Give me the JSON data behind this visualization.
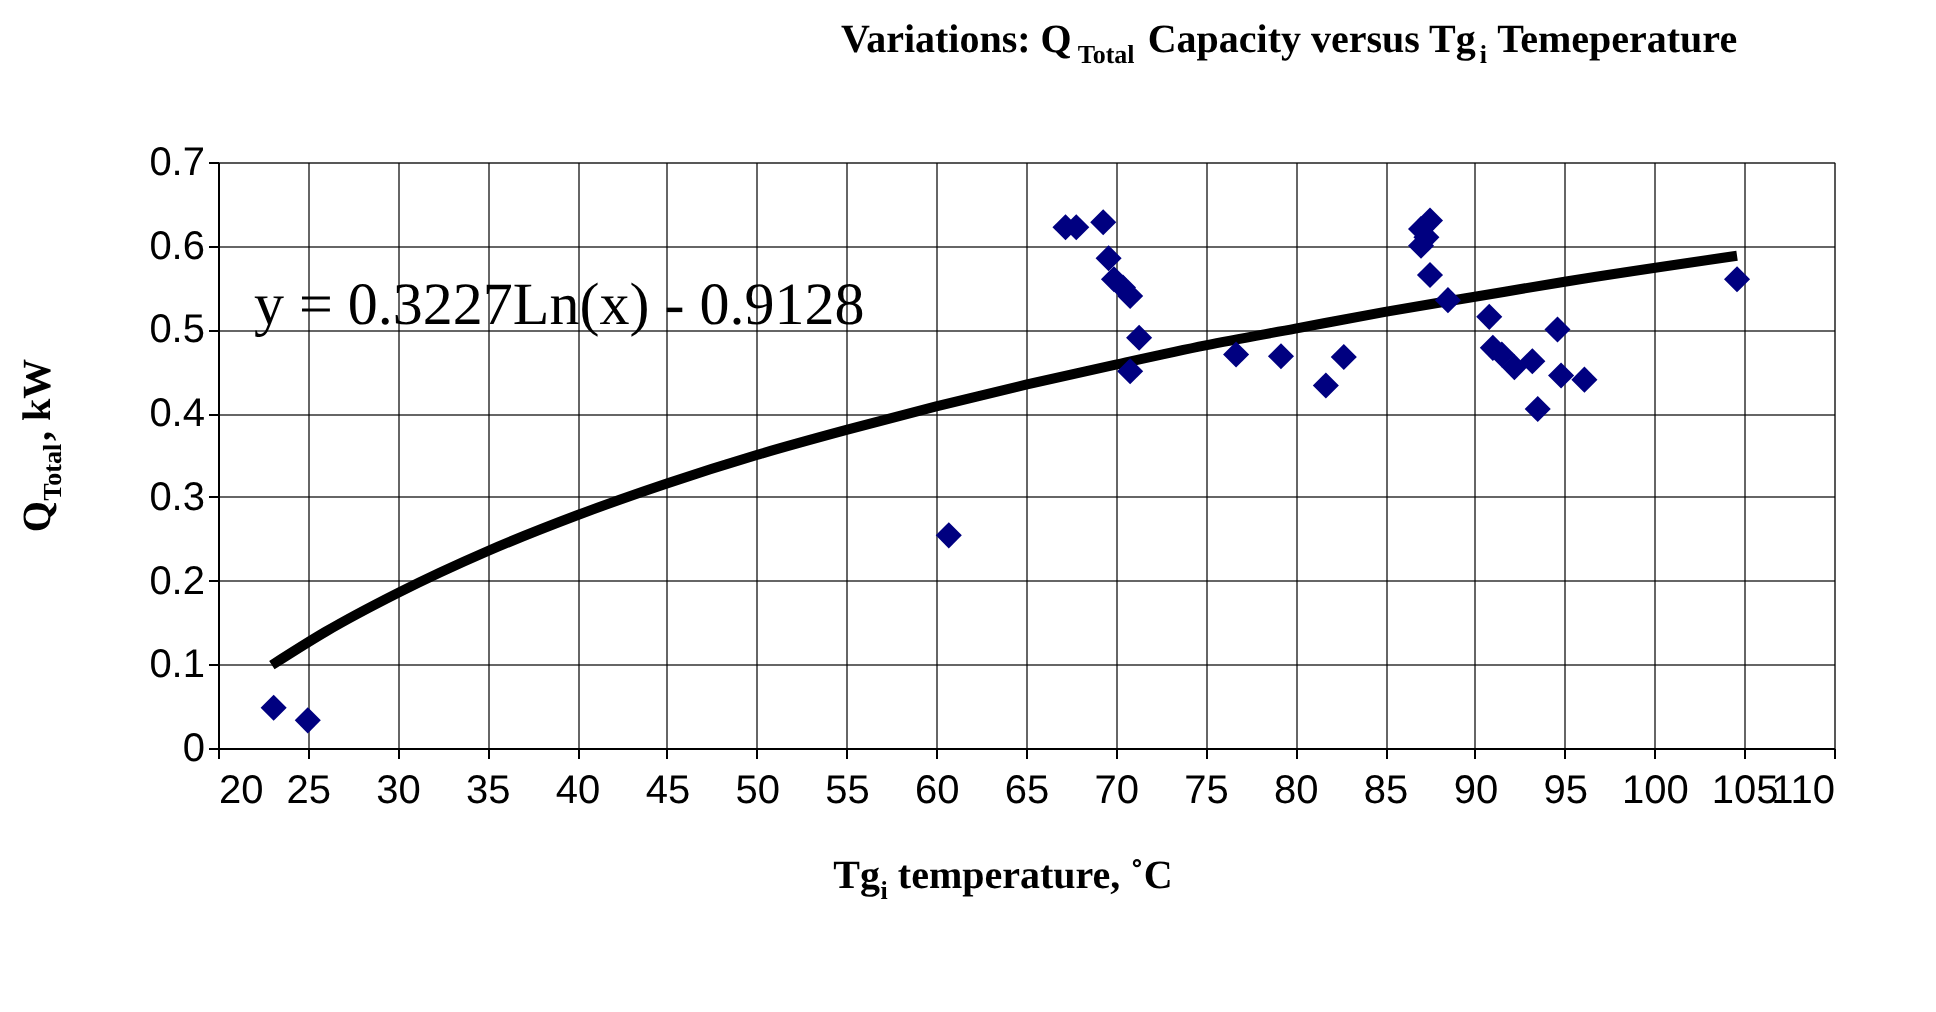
{
  "chart_data": {
    "type": "scatter",
    "title": "Variations: Q$_{Total}$ Capacity versus Tg$_{i}$ Temeperature",
    "xlabel": "Tg$_{i}$ temperature, ˚C",
    "ylabel": "Q$_{Total}$, kW",
    "annotations": [
      "y = 0.3227Ln(x) - 0.9128"
    ],
    "xlim": [
      20,
      110
    ],
    "xticks": [
      20,
      25,
      30,
      35,
      40,
      45,
      50,
      55,
      60,
      65,
      70,
      75,
      80,
      85,
      90,
      95,
      100,
      105,
      110
    ],
    "ylim": [
      0,
      0.7
    ],
    "yticks": [
      0,
      0.1,
      0.2,
      0.3,
      0.4,
      0.5,
      0.6,
      0.7
    ],
    "grid": true,
    "marker": "diamond",
    "series": [
      {
        "color": "#000080",
        "x": [
          23.1,
          25,
          60.7,
          67.2,
          67.8,
          69.3,
          69.6,
          69.9,
          70.4,
          70.8,
          70.8,
          71.3,
          76.7,
          79.2,
          81.7,
          82.7,
          87,
          87,
          87.5,
          87.3,
          87.5,
          88.5,
          90.8,
          91,
          91.5,
          92.2,
          93.2,
          93.5,
          94.6,
          94.8,
          96.1,
          104.6
        ],
        "values": [
          0.048,
          0.033,
          0.254,
          0.622,
          0.622,
          0.628,
          0.585,
          0.56,
          0.55,
          0.54,
          0.45,
          0.49,
          0.47,
          0.468,
          0.433,
          0.467,
          0.62,
          0.6,
          0.63,
          0.61,
          0.565,
          0.535,
          0.515,
          0.478,
          0.47,
          0.455,
          0.462,
          0.405,
          0.5,
          0.445,
          0.44,
          0.56
        ]
      },
      {
        "type": "line",
        "color": "#000000",
        "marker": "none",
        "x": [
          23,
          26,
          30,
          35,
          40,
          45,
          50,
          55,
          60,
          65,
          70,
          75,
          80,
          85,
          90,
          95,
          104.6
        ],
        "values": [
          0.099,
          0.139,
          0.185,
          0.235,
          0.278,
          0.316,
          0.35,
          0.38,
          0.408,
          0.434,
          0.458,
          0.481,
          0.501,
          0.521,
          0.539,
          0.557,
          0.588
        ]
      }
    ]
  }
}
